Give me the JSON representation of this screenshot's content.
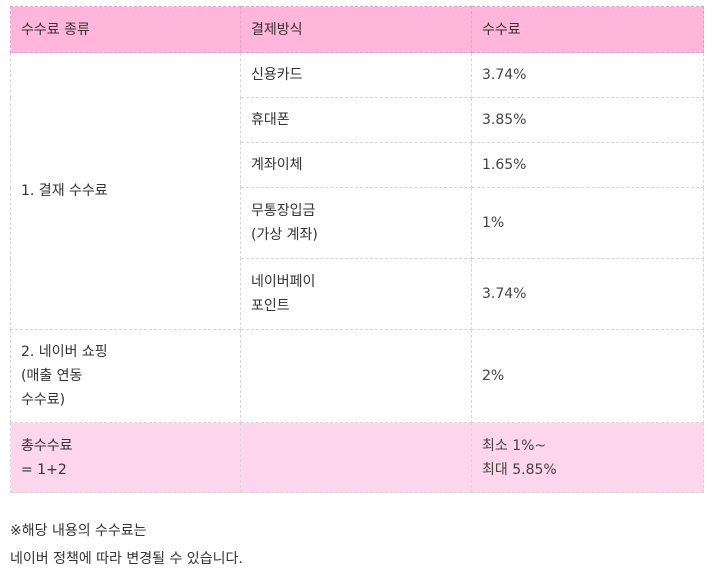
{
  "table": {
    "headers": [
      "수수료 종류",
      "결제방식",
      "수수료"
    ],
    "payment_fee_label": "1. 결재 수수료",
    "payment_rows": [
      {
        "method_line1": "신용카드",
        "method_line2": "",
        "fee": "3.74%"
      },
      {
        "method_line1": "휴대폰",
        "method_line2": "",
        "fee": "3.85%"
      },
      {
        "method_line1": "계좌이체",
        "method_line2": "",
        "fee": "1.65%"
      },
      {
        "method_line1": "무통장입금",
        "method_line2": "(가상 계좌)",
        "fee": "1%"
      },
      {
        "method_line1": "네이버페이",
        "method_line2": "포인트",
        "fee": "3.74%"
      }
    ],
    "shopping_row": {
      "label_line1": "2. 네이버 쇼핑",
      "label_line2": "(매출 연동",
      "label_line3": "수수료)",
      "method": "",
      "fee": "2%"
    },
    "total_row": {
      "label_line1": "총수수료",
      "label_line2": "= 1+2",
      "method": "",
      "fee_line1": "최소 1%~",
      "fee_line2": "최대 5.85%"
    }
  },
  "notes": {
    "line1": "※해당 내용의 수수료는",
    "line2": "네이버 정책에 따라 변경될 수 있습니다."
  },
  "colors": {
    "header_bg": "#ffb6da",
    "total_bg": "#fdd6ee",
    "border": "#d6d6d6"
  }
}
